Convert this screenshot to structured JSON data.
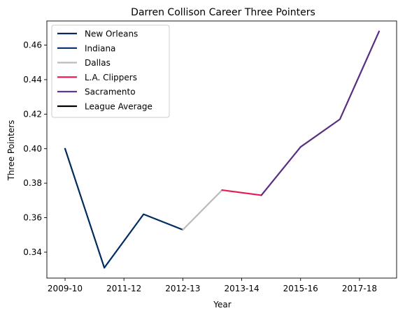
{
  "chart_data": {
    "type": "line",
    "title": "Darren Collison Career Three Pointers",
    "xlabel": "Year",
    "ylabel": "Three Pointers",
    "x_tick_labels": [
      "2009-10",
      "2011-12",
      "2012-13",
      "2013-14",
      "2015-16",
      "2017-18"
    ],
    "y_ticks": [
      0.34,
      0.36,
      0.38,
      0.4,
      0.42,
      0.44,
      0.46
    ],
    "ylim": [
      0.325,
      0.474
    ],
    "x_points": [
      0,
      1,
      2,
      3,
      4,
      5,
      6,
      7,
      8
    ],
    "legend_location": "upper-left",
    "grid": false,
    "series": [
      {
        "name": "New Orleans",
        "color": "#002b5c",
        "x": [
          0,
          1
        ],
        "values": [
          0.4,
          0.331
        ]
      },
      {
        "name": "Indiana",
        "color": "#002d62",
        "x": [
          1,
          2,
          3
        ],
        "values": [
          0.331,
          0.362,
          0.353
        ]
      },
      {
        "name": "Dallas",
        "color": "#bbbbbb",
        "x": [
          3,
          4
        ],
        "values": [
          0.353,
          0.376
        ]
      },
      {
        "name": "L.A. Clippers",
        "color": "#e31c55",
        "x": [
          4,
          5
        ],
        "values": [
          0.376,
          0.373
        ]
      },
      {
        "name": "Sacramento",
        "color": "#5a2d81",
        "x": [
          5,
          6,
          7,
          8
        ],
        "values": [
          0.373,
          0.401,
          0.417,
          0.468
        ]
      },
      {
        "name": "League Average",
        "color": "#000000",
        "x": [],
        "values": []
      }
    ]
  }
}
